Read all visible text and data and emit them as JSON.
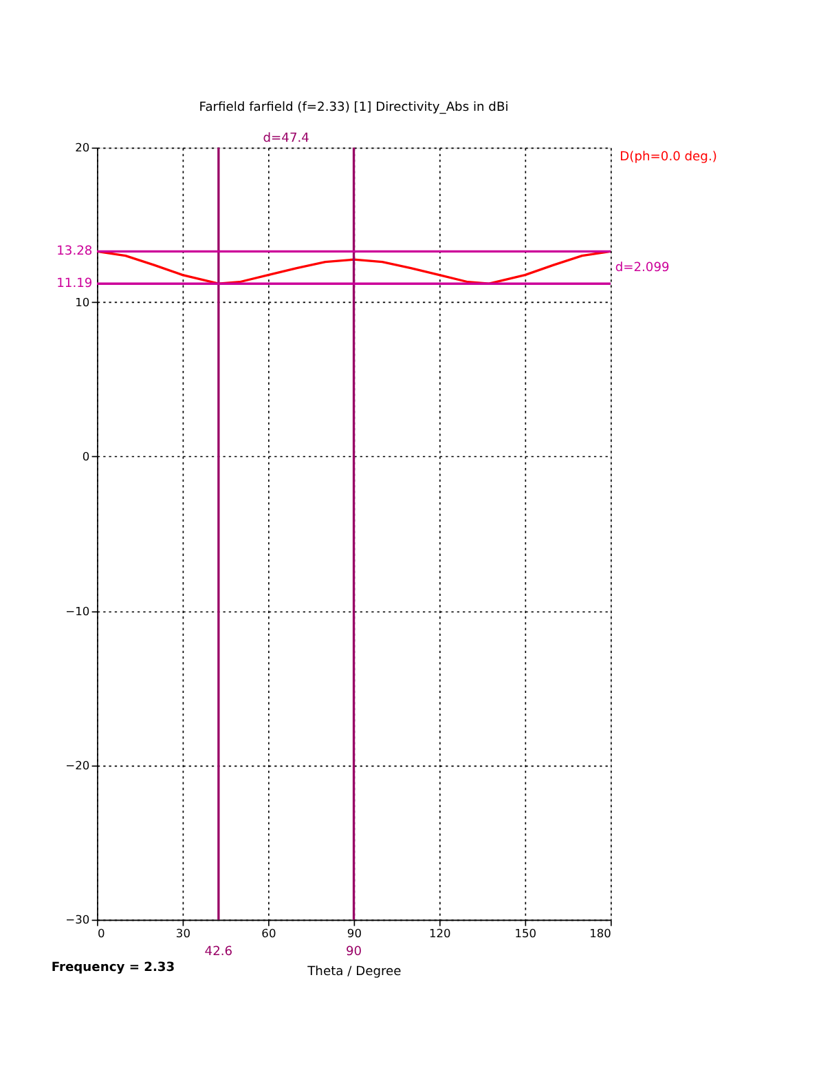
{
  "chart_data": {
    "type": "line",
    "title": "Farfield farfield (f=2.33) [1] Directivity_Abs in dBi",
    "xlabel": "Theta / Degree",
    "x": [
      0,
      10,
      20,
      30,
      42.6,
      50,
      60,
      70,
      80,
      90,
      100,
      110,
      120,
      130,
      137.4,
      150,
      160,
      170,
      180
    ],
    "series": [
      {
        "name": "D(ph=0.0 deg.)",
        "color": "#ff0000",
        "values": [
          13.28,
          13.0,
          12.4,
          11.75,
          11.19,
          11.3,
          11.75,
          12.2,
          12.6,
          12.75,
          12.6,
          12.2,
          11.75,
          11.3,
          11.19,
          11.75,
          12.4,
          13.0,
          13.28
        ]
      }
    ],
    "xlim": [
      0,
      180
    ],
    "xticks": [
      0,
      30,
      60,
      90,
      120,
      150,
      180
    ],
    "ylim": [
      -30,
      20
    ],
    "yticks": [
      -30,
      -20,
      -10,
      0,
      10,
      20
    ],
    "grid": true,
    "legend": "right",
    "marker": "none",
    "line_style": "solid",
    "ref_lines": [
      {
        "axis": "x",
        "value": 42.6,
        "label": "42.6",
        "color": "#990066"
      },
      {
        "axis": "x",
        "value": 90,
        "label": "90",
        "color": "#990066"
      },
      {
        "axis": "y",
        "value": 13.28,
        "label": "13.28",
        "color": "#cc0099"
      },
      {
        "axis": "y",
        "value": 11.19,
        "label": "11.19",
        "color": "#cc0099"
      }
    ],
    "annotations": [
      "d=47.4",
      "d=2.099",
      "Frequency = 2.33"
    ]
  }
}
